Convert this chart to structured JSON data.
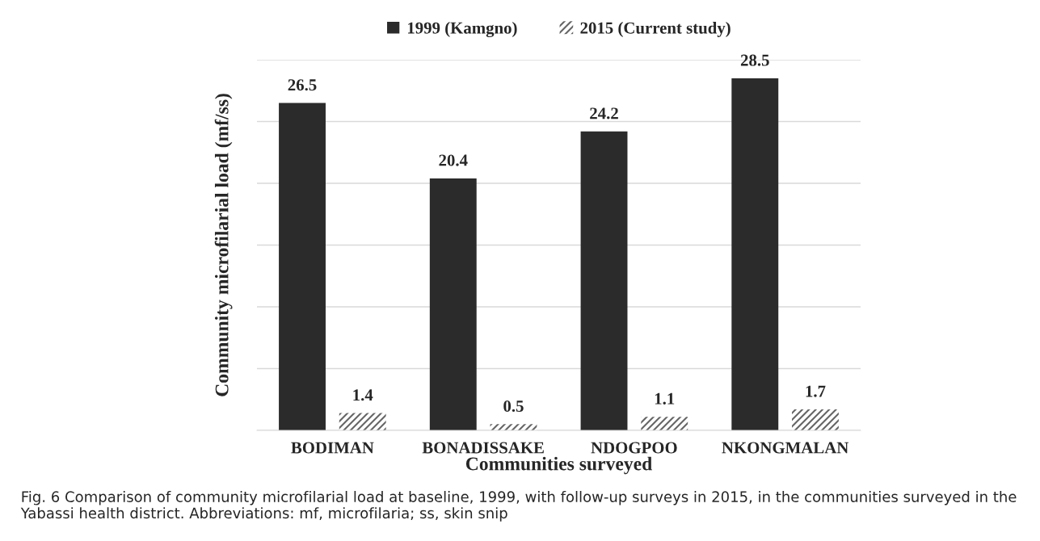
{
  "chart_data": {
    "type": "bar",
    "xlabel": "Communities surveyed",
    "ylabel": "Community microfilarial load (mf/ss)",
    "categories": [
      "BODIMAN",
      "BONADISSAKE",
      "NDOGPOO",
      "NKONGMALAN"
    ],
    "series": [
      {
        "name": "1999 (Kamgno)",
        "color": "#2b2b2b",
        "values": [
          26.5,
          20.4,
          24.2,
          28.5
        ]
      },
      {
        "name": "2015 (Current study)",
        "color": "#666666",
        "values": [
          1.4,
          0.5,
          1.1,
          1.7
        ]
      }
    ],
    "ylim": [
      0,
      30
    ],
    "yticks": [
      {
        "value": 0,
        "label": null
      },
      {
        "value": 5,
        "label": null
      },
      {
        "value": 10,
        "label": null
      },
      {
        "value": 15,
        "label": null
      },
      {
        "value": 20,
        "label": null
      },
      {
        "value": 25,
        "label": null
      },
      {
        "value": 30,
        "label": null
      }
    ],
    "grid": "y",
    "legend": "top",
    "data_labels": true,
    "annotations": [
      "Fig. 6 Comparison of community microfilarial load at baseline, 1999, with follow-up surveys in 2015, in the communities surveyed in the Yabassi health district. Abbreviations: mf, microfilaria; ss, skin snip"
    ]
  }
}
